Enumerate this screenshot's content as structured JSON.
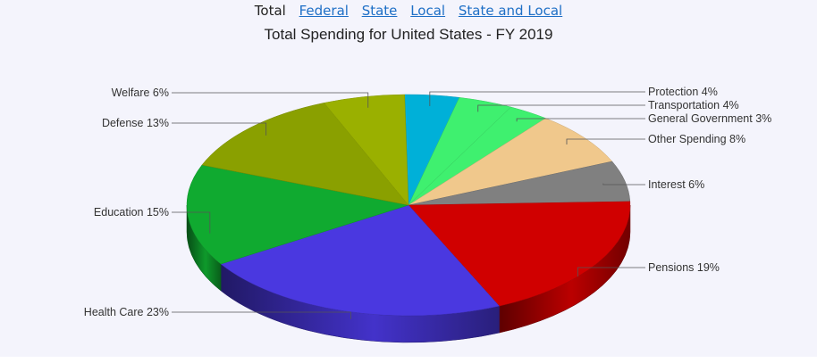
{
  "nav": {
    "current": "Total",
    "links": [
      "Federal",
      "State",
      "Local",
      "State and Local"
    ]
  },
  "chart_data": {
    "type": "pie",
    "title": "Total Spending for United States - FY 2019",
    "slices": [
      {
        "label": "Protection 4%",
        "value": 4,
        "color": "#00b0d8"
      },
      {
        "label": "Transportation 4%",
        "value": 4,
        "color": "#3ff06f"
      },
      {
        "label": "General Government 3%",
        "value": 3,
        "color": "#3ff06f"
      },
      {
        "label": "Other Spending 8%",
        "value": 8,
        "color": "#f0c88c"
      },
      {
        "label": "Interest 6%",
        "value": 6,
        "color": "#808080"
      },
      {
        "label": "Pensions 19%",
        "value": 19,
        "color": "#d00000"
      },
      {
        "label": "Health Care 23%",
        "value": 23,
        "color": "#4a38e0"
      },
      {
        "label": "Education 15%",
        "value": 15,
        "color": "#10aa30"
      },
      {
        "label": "Defense 13%",
        "value": 13,
        "color": "#8aa000"
      },
      {
        "label": "Welfare 6%",
        "value": 6,
        "color": "#9ab000"
      }
    ],
    "legend": "none",
    "style": "3d-tilted"
  }
}
